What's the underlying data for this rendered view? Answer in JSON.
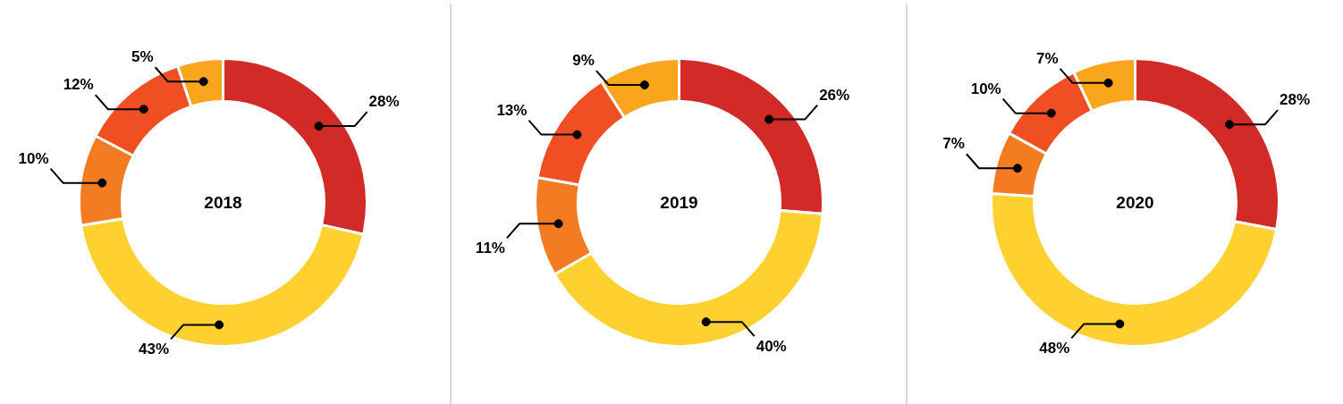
{
  "chart_data": [
    {
      "type": "donut",
      "title": "2018",
      "categories": [
        null,
        null,
        null,
        null,
        null
      ],
      "values": [
        28,
        43,
        10,
        12,
        5
      ],
      "colors": [
        "#d12a27",
        "#fed130",
        "#f37b22",
        "#f04e23",
        "#f9a61c"
      ],
      "value_labels": [
        "28%",
        "43%",
        "10%",
        "12%",
        "5%"
      ]
    },
    {
      "type": "donut",
      "title": "2019",
      "categories": [
        null,
        null,
        null,
        null,
        null
      ],
      "values": [
        26,
        40,
        11,
        13,
        9
      ],
      "colors": [
        "#d12a27",
        "#fed130",
        "#f37b22",
        "#f04e23",
        "#f9a61c"
      ],
      "value_labels": [
        "26%",
        "40%",
        "11%",
        "13%",
        "9%"
      ]
    },
    {
      "type": "donut",
      "title": "2020",
      "categories": [
        null,
        null,
        null,
        null,
        null
      ],
      "values": [
        28,
        48,
        7,
        10,
        7
      ],
      "colors": [
        "#d12a27",
        "#fed130",
        "#f37b22",
        "#f04e23",
        "#f9a61c"
      ],
      "value_labels": [
        "28%",
        "48%",
        "7%",
        "10%",
        "7%"
      ]
    }
  ]
}
